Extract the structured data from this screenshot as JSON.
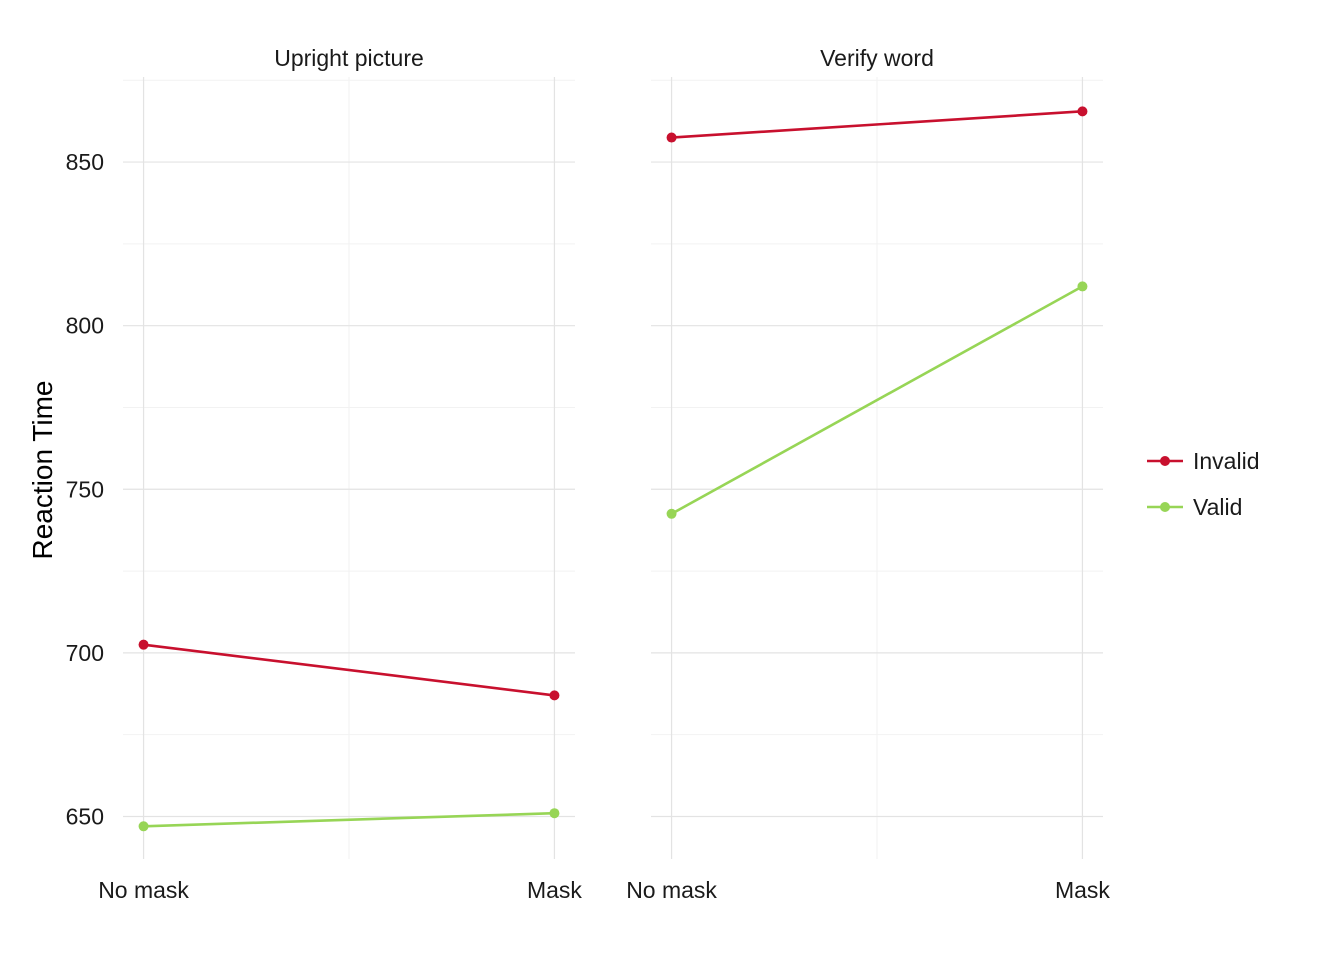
{
  "chart_data": {
    "type": "line",
    "ylabel": "Reaction Time",
    "xlabel": "",
    "categories": [
      "No mask",
      "Mask"
    ],
    "ylim": [
      637,
      876
    ],
    "yticks": [
      650,
      700,
      750,
      800,
      850
    ],
    "grid": true,
    "legend_position": "right",
    "series_meta": [
      {
        "name": "Invalid",
        "color": "#C8102E"
      },
      {
        "name": "Valid",
        "color": "#97D556"
      }
    ],
    "panels": [
      {
        "title": "Upright picture",
        "series": [
          {
            "name": "Invalid",
            "values": [
              702.5,
              687
            ]
          },
          {
            "name": "Valid",
            "values": [
              647,
              651
            ]
          }
        ]
      },
      {
        "title": "Verify word",
        "series": [
          {
            "name": "Invalid",
            "values": [
              857.5,
              865.5
            ]
          },
          {
            "name": "Valid",
            "values": [
              742.5,
              812
            ]
          }
        ]
      }
    ]
  }
}
